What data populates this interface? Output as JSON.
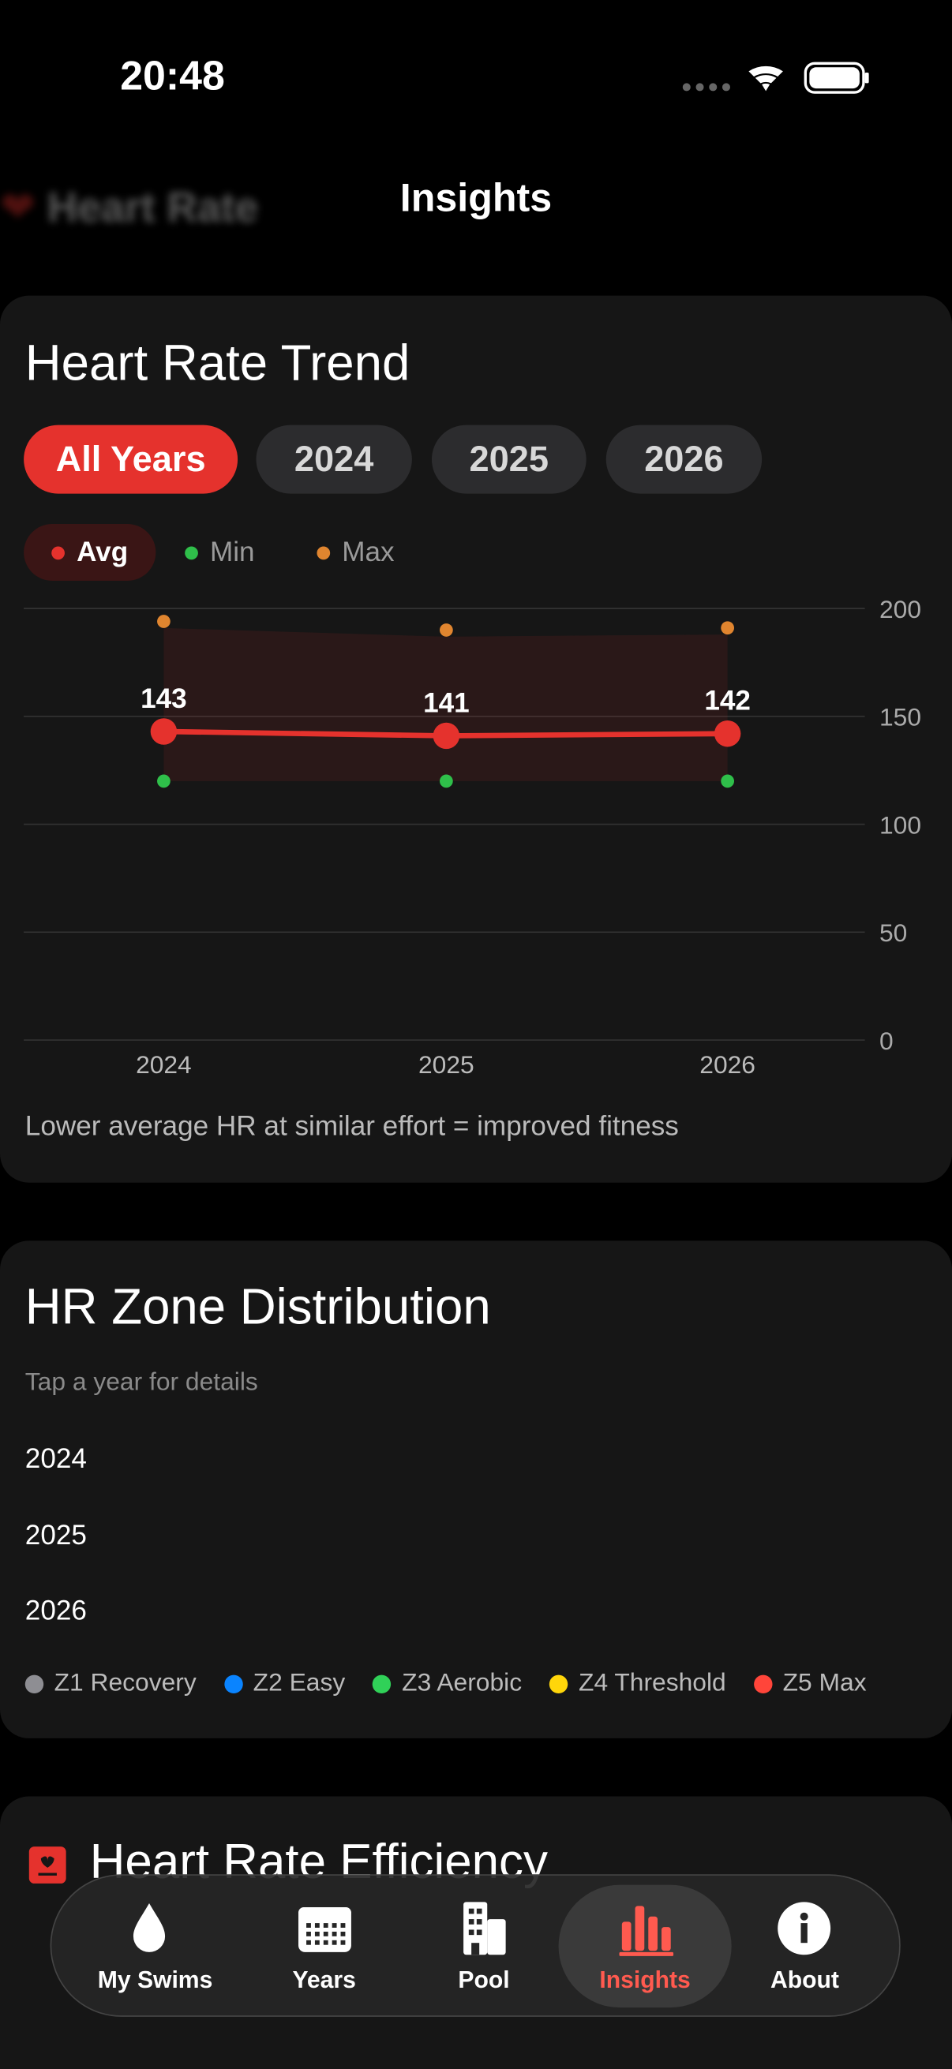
{
  "status_bar": {
    "time": "20:48"
  },
  "background_title": "Heart Rate",
  "nav": {
    "title": "Insights"
  },
  "trend_card": {
    "title": "Heart Rate Trend",
    "filters": [
      "All Years",
      "2024",
      "2025",
      "2026"
    ],
    "selected_filter": 0,
    "footnote": "Lower average HR at similar effort = improved fitness",
    "chart_data": {
      "type": "line",
      "categories": [
        "2024",
        "2025",
        "2026"
      ],
      "series": [
        {
          "name": "Avg",
          "color": "#e5322d",
          "values": [
            143,
            141,
            142
          ]
        },
        {
          "name": "Min",
          "color": "#2fbf4a",
          "values": [
            120,
            120,
            120
          ]
        },
        {
          "name": "Max",
          "color": "#e0852f",
          "values": [
            194,
            190,
            191
          ]
        }
      ],
      "ylim": [
        0,
        200
      ],
      "yticks": [
        0,
        50,
        100,
        150,
        200
      ],
      "grid": true
    }
  },
  "zone_card": {
    "title": "HR Zone Distribution",
    "subtitle": "Tap a year for details",
    "years": [
      "2024",
      "2025",
      "2026"
    ],
    "zones": [
      {
        "name": "Z1 Recovery",
        "color": "#8e8e93"
      },
      {
        "name": "Z2 Easy",
        "color": "#0a84ff"
      },
      {
        "name": "Z3 Aerobic",
        "color": "#30d158"
      },
      {
        "name": "Z4 Threshold",
        "color": "#ffd60a"
      },
      {
        "name": "Z5 Max",
        "color": "#ff453a"
      }
    ]
  },
  "efficiency_card": {
    "title": "Heart Rate Efficiency"
  },
  "tab_bar": {
    "tabs": [
      "My Swims",
      "Years",
      "Pool",
      "Insights",
      "About"
    ],
    "active": 3
  }
}
